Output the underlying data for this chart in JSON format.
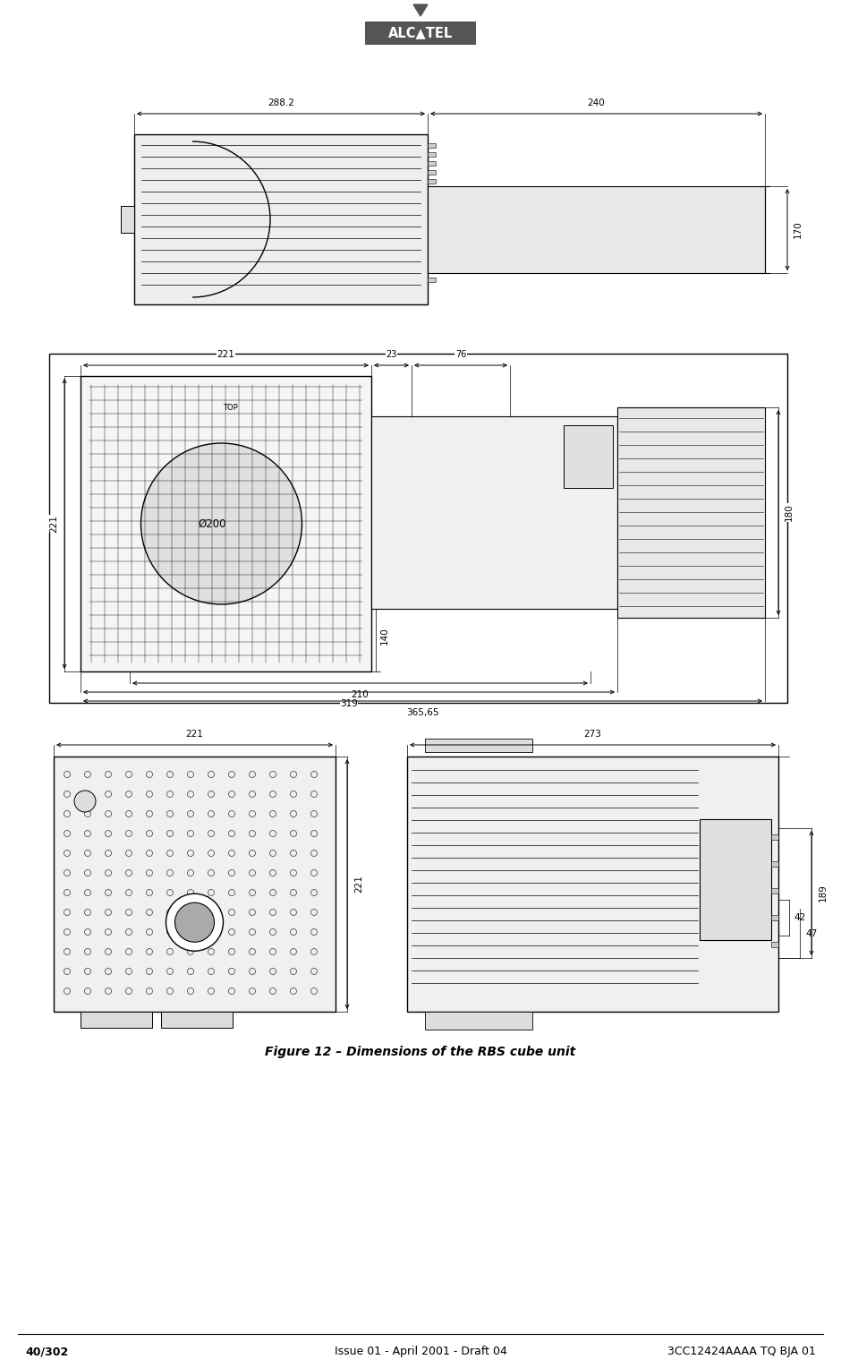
{
  "page_width": 9.4,
  "page_height": 15.28,
  "background_color": "#ffffff",
  "logo_text": "ALC▲TEL",
  "logo_bg": "#555555",
  "logo_text_color": "#ffffff",
  "logo_triangle_color": "#555555",
  "figure_caption": "Figure 12 – Dimensions of the RBS cube unit",
  "footer_left": "40/302",
  "footer_center": "Issue 01 - April 2001 - Draft 04",
  "footer_right": "3CC12424AAAA TQ BJA 01",
  "dim_top_288": "288.2",
  "dim_top_240": "240",
  "dim_top_170": "170",
  "dim_mid_221a": "221",
  "dim_mid_23": "23",
  "dim_mid_76": "76",
  "dim_mid_221b": "221",
  "dim_mid_200": "Ø200",
  "dim_mid_180": "180",
  "dim_mid_140": "140",
  "dim_mid_210": "210",
  "dim_mid_319": "319",
  "dim_mid_36565": "365,65",
  "dim_bot_221": "221",
  "dim_bot_273": "273",
  "dim_bot_221v": "221",
  "dim_bot_42": "42",
  "dim_bot_47": "47",
  "dim_bot_189": "189"
}
